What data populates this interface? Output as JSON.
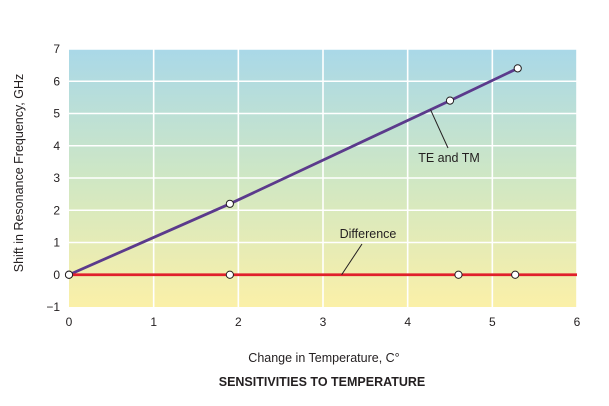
{
  "chart_data": {
    "type": "line",
    "title": "SENSITIVITIES TO TEMPERATURE",
    "xlabel": "Change in Temperature, C°",
    "ylabel": "Shift in Resonance Frequency, GHz",
    "xlim": [
      0,
      6
    ],
    "ylim": [
      -1,
      7
    ],
    "x_ticks": [
      0,
      1,
      2,
      3,
      4,
      5,
      6
    ],
    "y_ticks": [
      -1,
      0,
      1,
      2,
      3,
      4,
      5,
      6,
      7
    ],
    "grid": true,
    "background_gradient": {
      "top": "#a9d8e8",
      "middle": "#cfe7c4",
      "bottom": "#fbf0a8"
    },
    "series": [
      {
        "name": "TE and TM",
        "color": "#5b3a8c",
        "x": [
          0,
          1.9,
          4.5,
          5.3
        ],
        "y": [
          0,
          2.2,
          5.4,
          6.4
        ]
      },
      {
        "name": "Difference",
        "color": "#e0202b",
        "x": [
          0,
          1.9,
          4.6,
          5.27
        ],
        "y": [
          0,
          0,
          0,
          0
        ]
      }
    ],
    "annotations": [
      {
        "text": "TE and TM",
        "target_series": "TE and TM",
        "target_x": 4.27
      },
      {
        "text": "Difference",
        "target_series": "Difference",
        "target_x": 3.22
      }
    ]
  }
}
